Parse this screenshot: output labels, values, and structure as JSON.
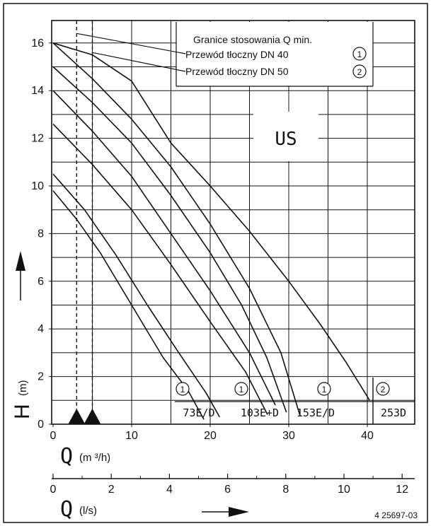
{
  "chart_data": {
    "type": "line",
    "title": "",
    "ylabel": "H",
    "ylabel_unit": "(m)",
    "xlabel": "Q",
    "xlabel_unit": "(m ³/h)",
    "x2label": "Q",
    "x2label_unit": "(l/s)",
    "xlim": [
      0,
      45
    ],
    "ylim": [
      0,
      17
    ],
    "x2lim": [
      0,
      12.5
    ],
    "grid": true,
    "y_ticks": [
      "0",
      "2",
      "4",
      "6",
      "8",
      "10",
      "12",
      "14",
      "16"
    ],
    "x_ticks": [
      "0",
      "10",
      "20",
      "30",
      "40"
    ],
    "x2_ticks": [
      "0",
      "2",
      "4",
      "6",
      "8",
      "10",
      "12"
    ],
    "legend": {
      "title": "Granice stosowania Q min.",
      "items": [
        {
          "label": "Przewód tłoczny DN 40",
          "marker": "1"
        },
        {
          "label": "Przewód tłoczny DN 50",
          "marker": "2"
        }
      ]
    },
    "min_flow_lines": [
      {
        "x": 3,
        "name": "DN 40"
      },
      {
        "x": 5,
        "name": "DN 50"
      }
    ],
    "series": [
      {
        "name": "73E/D",
        "x": [
          0,
          3,
          6,
          10,
          14,
          17.2,
          19.2
        ],
        "y": [
          9.8,
          8.6,
          7.2,
          5.0,
          2.8,
          1.4,
          0.2
        ]
      },
      {
        "name": "73E/D",
        "x": [
          0,
          4,
          8,
          12,
          16,
          19.5,
          21.2
        ],
        "y": [
          10.5,
          9.0,
          7.1,
          5.0,
          3.0,
          1.3,
          0.3
        ]
      },
      {
        "name": "103E+D",
        "x": [
          0,
          5,
          10,
          15,
          20,
          24.5,
          27.3
        ],
        "y": [
          12.6,
          10.9,
          9.0,
          6.7,
          4.3,
          2.2,
          0.4
        ]
      },
      {
        "name": "103E+D",
        "x": [
          0,
          5,
          10,
          15,
          20,
          25,
          28.3
        ],
        "y": [
          14.0,
          12.3,
          10.4,
          8.0,
          5.6,
          3.0,
          0.8
        ]
      },
      {
        "name": "153E/D",
        "x": [
          0,
          5,
          10,
          15,
          20,
          24,
          27.2,
          29.7
        ],
        "y": [
          15.0,
          13.5,
          11.8,
          9.6,
          7.2,
          5.0,
          2.8,
          0.5
        ]
      },
      {
        "name": "153E/D",
        "x": [
          0,
          5,
          10,
          15,
          20,
          25,
          29,
          31.4
        ],
        "y": [
          16.0,
          14.5,
          12.8,
          10.8,
          8.4,
          5.7,
          3.0,
          0.4
        ]
      },
      {
        "name": "253D",
        "x": [
          0,
          5,
          10,
          15,
          20,
          25,
          30,
          34,
          37.3,
          40.3
        ],
        "y": [
          16.0,
          15.5,
          14.4,
          11.8,
          10.0,
          8.1,
          6.0,
          4.2,
          2.6,
          1.0
        ]
      }
    ],
    "range_labels": [
      {
        "text": "73E/D",
        "marker": "1"
      },
      {
        "text": "103E+D",
        "marker": "1"
      },
      {
        "text": "153E/D",
        "marker": "1"
      },
      {
        "text": "253D",
        "marker": "2"
      }
    ],
    "annotation": "US",
    "code": "4 25697-03"
  }
}
